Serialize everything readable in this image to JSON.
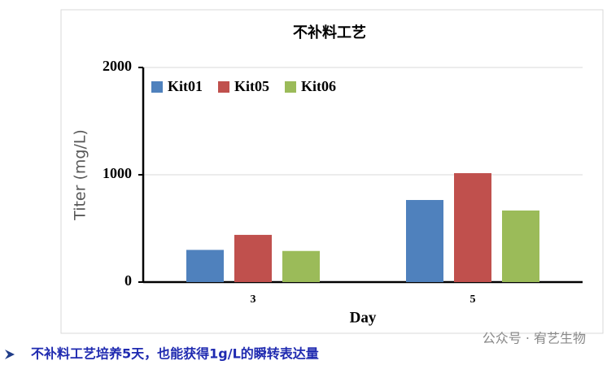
{
  "chart_data": {
    "type": "bar",
    "title": "不补料工艺",
    "y_label": "Titer (mg/L)",
    "x_label": "Day",
    "categories": [
      "3",
      "5"
    ],
    "series": [
      {
        "name": "Kit01",
        "color": "#4f81bd",
        "values": [
          300,
          765
        ]
      },
      {
        "name": "Kit05",
        "color": "#c0504d",
        "values": [
          440,
          1015
        ]
      },
      {
        "name": "Kit06",
        "color": "#9bbb59",
        "values": [
          290,
          667
        ]
      }
    ],
    "ylim": [
      0,
      2000
    ],
    "yticks": [
      0,
      1000,
      2000
    ],
    "grid": true,
    "legend": "top-left"
  },
  "caption": "不补料工艺培养5天，也能获得1g/L的瞬转表达量",
  "watermark": "公众号 · 宥艺生物"
}
